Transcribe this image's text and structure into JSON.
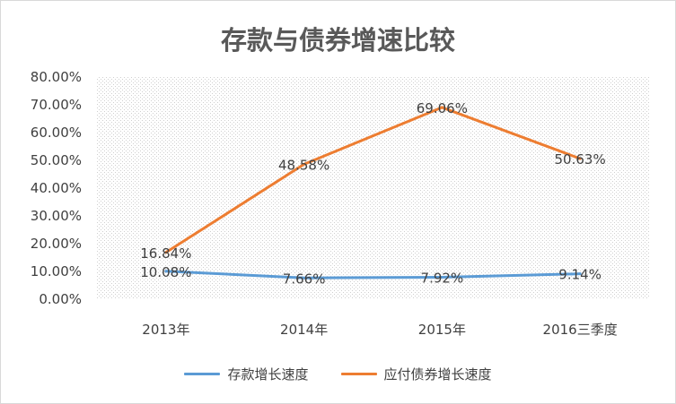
{
  "chart_data": {
    "type": "line",
    "title": "存款与债券增速比较",
    "categories": [
      "2013年",
      "2014年",
      "2015年",
      "2016三季度"
    ],
    "yticks": [
      "0.00%",
      "10.00%",
      "20.00%",
      "30.00%",
      "40.00%",
      "50.00%",
      "60.00%",
      "70.00%",
      "80.00%"
    ],
    "ylim": [
      0,
      80
    ],
    "ylabel": "",
    "xlabel": "",
    "grid": "dotted-pattern",
    "legend_position": "bottom",
    "series": [
      {
        "name": "存款增长速度",
        "color": "#5b9bd5",
        "values": [
          10.08,
          7.66,
          7.92,
          9.14
        ],
        "labels": [
          "10.08%",
          "7.66%",
          "7.92%",
          "9.14%"
        ]
      },
      {
        "name": "应付债券增长速度",
        "color": "#ed7d31",
        "values": [
          16.84,
          48.58,
          69.06,
          50.63
        ],
        "labels": [
          "16.84%",
          "48.58%",
          "69.06%",
          "50.63%"
        ]
      }
    ]
  }
}
